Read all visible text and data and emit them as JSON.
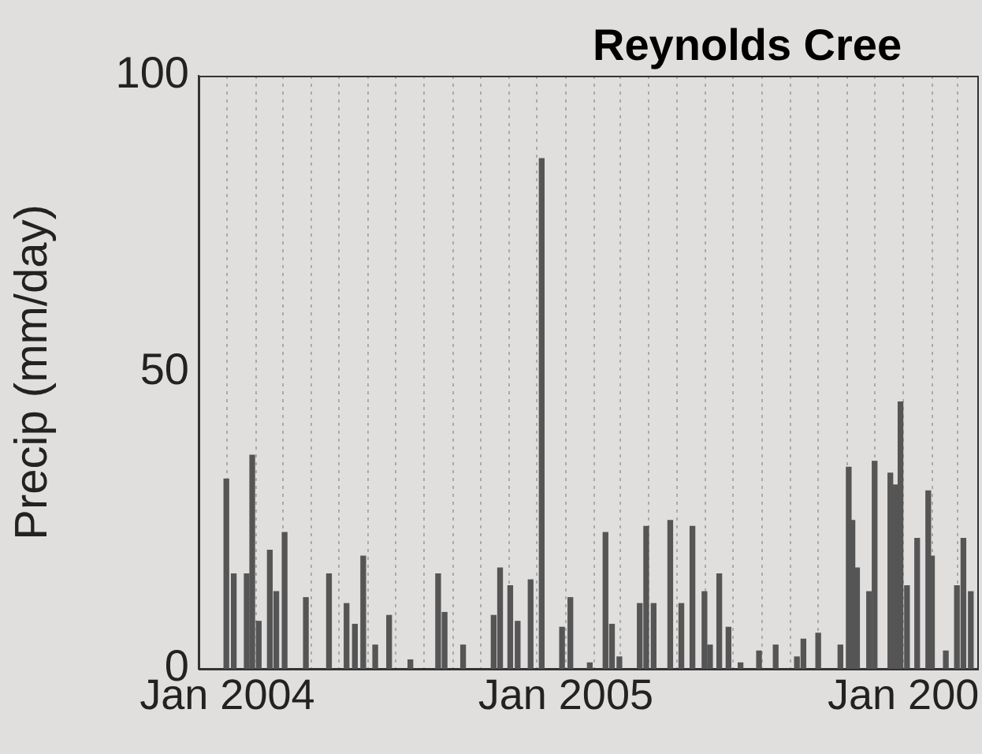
{
  "chart_data": {
    "type": "bar",
    "title": "Reynolds Cree",
    "ylabel": "Precip (mm/day)",
    "x": [
      "2003-12-31",
      "2004-01-08",
      "2004-01-22",
      "2004-01-28",
      "2004-02-04",
      "2004-02-16",
      "2004-02-23",
      "2004-03-03",
      "2004-03-26",
      "2004-04-20",
      "2004-05-09",
      "2004-05-18",
      "2004-05-27",
      "2004-06-09",
      "2004-06-24",
      "2004-07-17",
      "2004-08-16",
      "2004-08-23",
      "2004-09-12",
      "2004-10-15",
      "2004-10-22",
      "2004-11-02",
      "2004-11-10",
      "2004-11-24",
      "2004-12-06",
      "2004-12-28",
      "2005-01-06",
      "2005-01-27",
      "2005-02-13",
      "2005-02-20",
      "2005-02-28",
      "2005-03-22",
      "2005-03-29",
      "2005-04-06",
      "2005-04-24",
      "2005-05-06",
      "2005-05-18",
      "2005-05-31",
      "2005-06-06",
      "2005-06-16",
      "2005-06-26",
      "2005-07-09",
      "2005-07-29",
      "2005-08-16",
      "2005-09-08",
      "2005-09-15",
      "2005-10-01",
      "2005-10-25",
      "2005-11-03",
      "2005-11-07",
      "2005-11-12",
      "2005-11-25",
      "2005-12-01",
      "2005-12-18",
      "2005-12-23",
      "2005-12-29",
      "2006-01-05",
      "2006-01-16",
      "2006-01-28",
      "2006-02-01",
      "2006-02-16",
      "2006-02-28",
      "2006-03-07",
      "2006-03-15"
    ],
    "values": [
      32,
      16,
      16,
      36,
      8,
      20,
      13,
      23,
      12,
      16,
      11,
      7.5,
      19,
      4,
      9,
      1.5,
      16,
      9.5,
      4,
      9,
      17,
      14,
      8,
      15,
      86,
      7,
      12,
      1,
      23,
      7.5,
      2,
      11,
      24,
      11,
      25,
      11,
      24,
      13,
      4,
      16,
      7,
      1,
      3,
      4,
      2,
      5,
      6,
      4,
      34,
      25,
      17,
      13,
      35,
      33,
      31,
      45,
      14,
      22,
      30,
      19,
      3,
      14,
      22,
      13
    ],
    "color": "#555555",
    "xlim": [
      "2003-12-01",
      "2006-03-22"
    ],
    "ylim": [
      0,
      100
    ],
    "yticks": [
      0,
      50,
      100
    ],
    "xticks": [
      {
        "value": "2004-01-01",
        "label": "Jan 2004"
      },
      {
        "value": "2004-02-01",
        "label": null
      },
      {
        "value": "2004-03-01",
        "label": null
      },
      {
        "value": "2004-04-01",
        "label": null
      },
      {
        "value": "2004-05-01",
        "label": null
      },
      {
        "value": "2004-06-01",
        "label": null
      },
      {
        "value": "2004-07-01",
        "label": null
      },
      {
        "value": "2004-08-01",
        "label": null
      },
      {
        "value": "2004-09-01",
        "label": null
      },
      {
        "value": "2004-10-01",
        "label": null
      },
      {
        "value": "2004-11-01",
        "label": null
      },
      {
        "value": "2004-12-01",
        "label": null
      },
      {
        "value": "2005-01-01",
        "label": "Jan 2005"
      },
      {
        "value": "2005-02-01",
        "label": null
      },
      {
        "value": "2005-03-01",
        "label": null
      },
      {
        "value": "2005-04-01",
        "label": null
      },
      {
        "value": "2005-05-01",
        "label": null
      },
      {
        "value": "2005-06-01",
        "label": null
      },
      {
        "value": "2005-07-01",
        "label": null
      },
      {
        "value": "2005-08-01",
        "label": null
      },
      {
        "value": "2005-09-01",
        "label": null
      },
      {
        "value": "2005-10-01",
        "label": null
      },
      {
        "value": "2005-11-01",
        "label": null
      },
      {
        "value": "2005-12-01",
        "label": null
      },
      {
        "value": "2006-01-01",
        "label": "Jan 200"
      },
      {
        "value": "2006-02-01",
        "label": null
      },
      {
        "value": "2006-03-01",
        "label": null
      }
    ],
    "grid": "x"
  }
}
